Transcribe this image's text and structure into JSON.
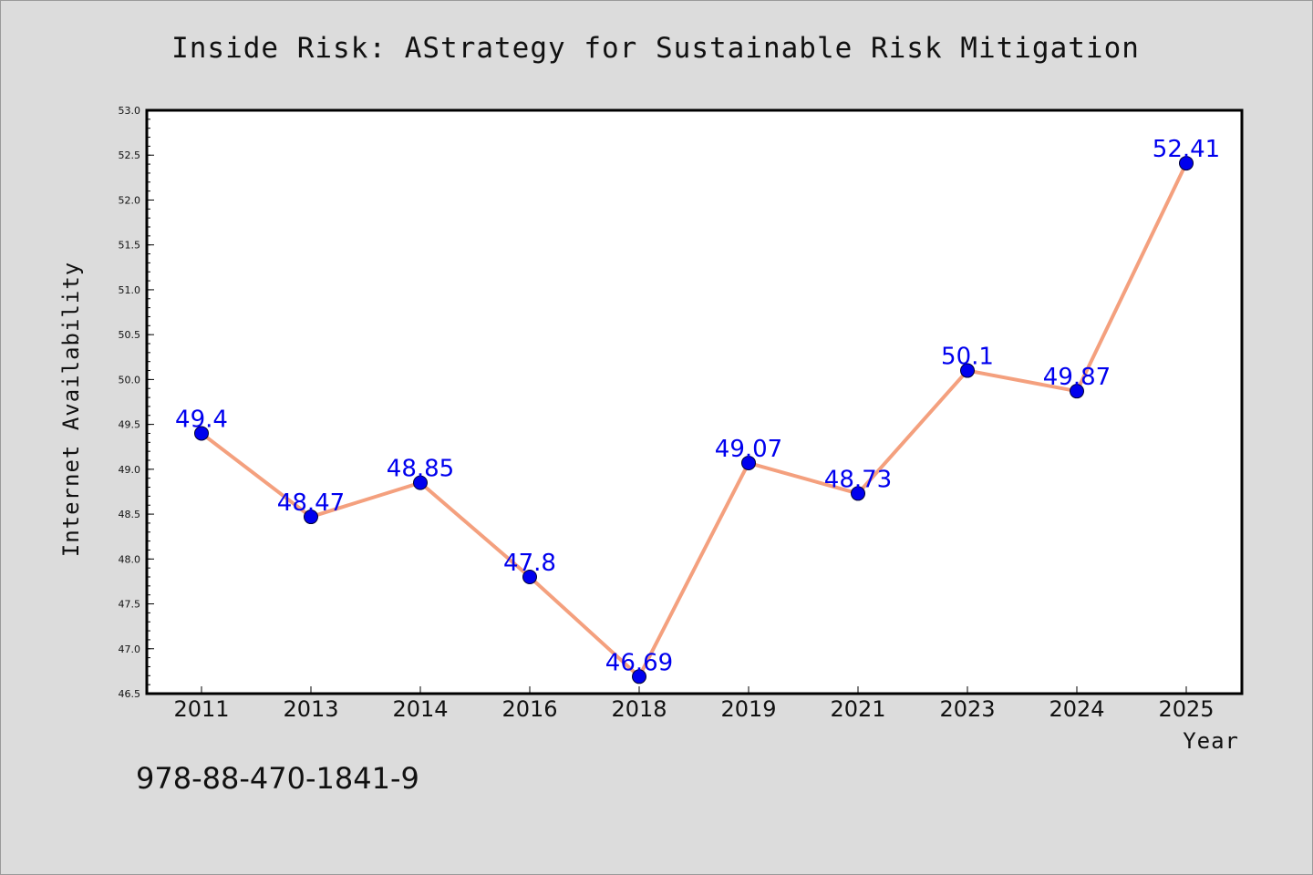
{
  "chart_data": {
    "type": "line",
    "title": "Inside Risk: AStrategy for Sustainable Risk Mitigation",
    "xlabel": "Year",
    "ylabel": "Internet Availability",
    "categories": [
      "2011",
      "2013",
      "2014",
      "2016",
      "2018",
      "2019",
      "2021",
      "2023",
      "2024",
      "2025"
    ],
    "values": [
      49.4,
      48.47,
      48.85,
      47.8,
      46.69,
      49.07,
      48.73,
      50.1,
      49.87,
      52.41
    ],
    "data_labels": [
      "49.4",
      "48.47",
      "48.85",
      "47.8",
      "46.69",
      "49.07",
      "48.73",
      "50.1",
      "49.87",
      "52.41"
    ],
    "ylim": [
      46.5,
      53.0
    ],
    "yticks": [
      "46.5",
      "47.0",
      "47.5",
      "48.0",
      "48.5",
      "49.0",
      "49.5",
      "50.0",
      "50.5",
      "51.0",
      "51.5",
      "52.0",
      "52.5",
      "53.0"
    ],
    "grid": false,
    "legend": "none",
    "line_color": "#f4a07e",
    "marker_color": "#0000ee",
    "label_color": "#0000ee",
    "background_color": "#dcdcdc",
    "plot_background_color": "#ffffff"
  },
  "footer": {
    "isbn": "978-88-470-1841-9"
  }
}
